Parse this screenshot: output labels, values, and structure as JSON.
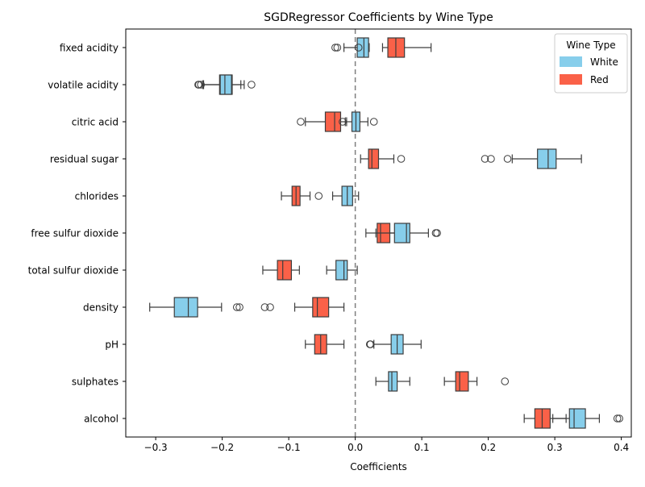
{
  "chart_data": {
    "type": "boxplot",
    "orientation": "horizontal",
    "title": "SGDRegressor Coefficients by Wine Type",
    "xlabel": "Coefficients",
    "ylabel": "",
    "xlim": [
      -0.345,
      0.415
    ],
    "xticks": [
      -0.3,
      -0.2,
      -0.1,
      0.0,
      0.1,
      0.2,
      0.3,
      0.4
    ],
    "xtick_labels": [
      "−0.3",
      "−0.2",
      "−0.1",
      "0.0",
      "0.1",
      "0.2",
      "0.3",
      "0.4"
    ],
    "reference_line": {
      "x": 0,
      "style": "dashed"
    },
    "grid": false,
    "legend": {
      "title": "Wine Type",
      "placement": "top-right",
      "entries": [
        {
          "name": "White",
          "color": "#87CEEB"
        },
        {
          "name": "Red",
          "color": "#FA6148"
        }
      ]
    },
    "colors": {
      "White": "#87CEEB",
      "Red": "#FA6148",
      "edge": "#3d3d3d"
    },
    "categories": [
      "fixed acidity",
      "volatile acidity",
      "citric acid",
      "residual sugar",
      "chlorides",
      "free sulfur dioxide",
      "total sulfur dioxide",
      "density",
      "pH",
      "sulphates",
      "alcohol"
    ],
    "series": [
      {
        "name": "White",
        "boxes": [
          {
            "whislo": -0.017,
            "q1": 0.003,
            "med": 0.013,
            "q3": 0.02,
            "whishi": 0.021,
            "fliers": [
              -0.03,
              -0.027,
              0.005
            ]
          },
          {
            "whislo": -0.228,
            "q1": -0.203,
            "med": -0.196,
            "q3": -0.186,
            "whishi": -0.172,
            "fliers": [
              -0.232,
              -0.236,
              -0.156
            ]
          },
          {
            "whislo": -0.015,
            "q1": -0.005,
            "med": 0.001,
            "q3": 0.007,
            "whishi": 0.019,
            "fliers": [
              -0.019,
              0.028
            ]
          },
          {
            "whislo": 0.236,
            "q1": 0.274,
            "med": 0.29,
            "q3": 0.302,
            "whishi": 0.34,
            "fliers": [
              0.195,
              0.204,
              0.229
            ]
          },
          {
            "whislo": -0.034,
            "q1": -0.02,
            "med": -0.012,
            "q3": -0.004,
            "whishi": 0.005,
            "fliers": []
          },
          {
            "whislo": 0.031,
            "q1": 0.059,
            "med": 0.077,
            "q3": 0.082,
            "whishi": 0.11,
            "fliers": [
              0.121,
              0.123
            ]
          },
          {
            "whislo": -0.043,
            "q1": -0.029,
            "med": -0.017,
            "q3": -0.012,
            "whishi": 0.003,
            "fliers": []
          },
          {
            "whislo": -0.309,
            "q1": -0.272,
            "med": -0.251,
            "q3": -0.237,
            "whishi": -0.201,
            "fliers": [
              -0.178,
              -0.174
            ]
          },
          {
            "whislo": 0.028,
            "q1": 0.054,
            "med": 0.063,
            "q3": 0.072,
            "whishi": 0.099,
            "fliers": [
              0.022,
              0.023
            ]
          },
          {
            "whislo": 0.031,
            "q1": 0.05,
            "med": 0.055,
            "q3": 0.063,
            "whishi": 0.082,
            "fliers": []
          },
          {
            "whislo": 0.297,
            "q1": 0.322,
            "med": 0.329,
            "q3": 0.346,
            "whishi": 0.367,
            "fliers": [
              0.394,
              0.397
            ]
          }
        ]
      },
      {
        "name": "Red",
        "boxes": [
          {
            "whislo": 0.041,
            "q1": 0.049,
            "med": 0.061,
            "q3": 0.074,
            "whishi": 0.114,
            "fliers": []
          },
          {
            "whislo": -0.229,
            "q1": -0.204,
            "med": -0.194,
            "q3": -0.185,
            "whishi": -0.167,
            "fliers": [
              -0.235
            ]
          },
          {
            "whislo": -0.075,
            "q1": -0.045,
            "med": -0.031,
            "q3": -0.022,
            "whishi": -0.013,
            "fliers": [
              -0.082
            ]
          },
          {
            "whislo": 0.008,
            "q1": 0.02,
            "med": 0.025,
            "q3": 0.035,
            "whishi": 0.058,
            "fliers": [
              0.069
            ]
          },
          {
            "whislo": -0.111,
            "q1": -0.095,
            "med": -0.089,
            "q3": -0.083,
            "whishi": -0.068,
            "fliers": [
              -0.055
            ]
          },
          {
            "whislo": 0.016,
            "q1": 0.033,
            "med": 0.038,
            "q3": 0.052,
            "whishi": 0.078,
            "fliers": []
          },
          {
            "whislo": -0.139,
            "q1": -0.117,
            "med": -0.109,
            "q3": -0.096,
            "whishi": -0.084,
            "fliers": []
          },
          {
            "whislo": -0.091,
            "q1": -0.064,
            "med": -0.057,
            "q3": -0.04,
            "whishi": -0.017,
            "fliers": [
              -0.136,
              -0.128
            ]
          },
          {
            "whislo": -0.075,
            "q1": -0.061,
            "med": -0.052,
            "q3": -0.043,
            "whishi": -0.017,
            "fliers": []
          },
          {
            "whislo": 0.134,
            "q1": 0.151,
            "med": 0.157,
            "q3": 0.17,
            "whishi": 0.183,
            "fliers": [
              0.225
            ]
          },
          {
            "whislo": 0.254,
            "q1": 0.27,
            "med": 0.281,
            "q3": 0.293,
            "whishi": 0.317,
            "fliers": []
          }
        ]
      }
    ],
    "draw_order_per_row": [
      "Red",
      "White"
    ]
  }
}
